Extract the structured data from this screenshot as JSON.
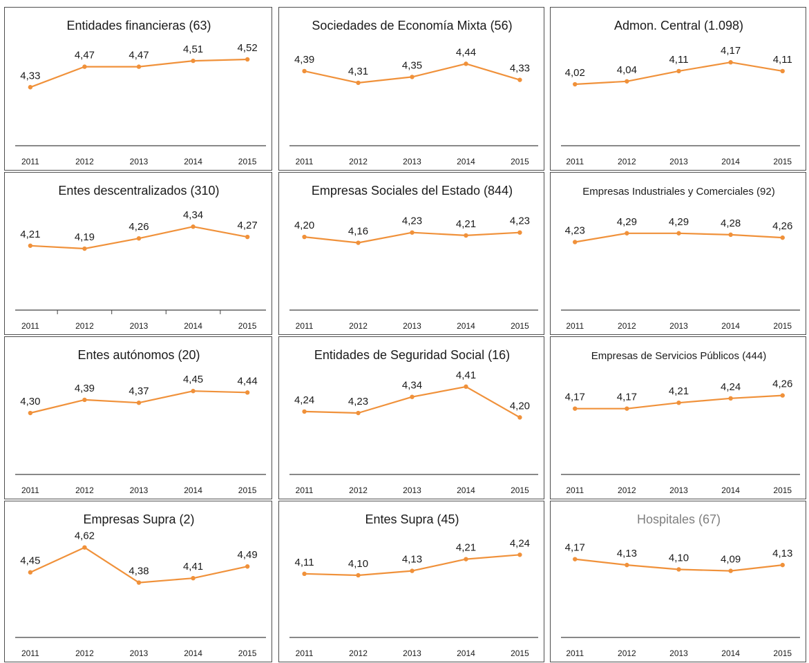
{
  "style": {
    "line_color": "#F0913A",
    "axis_color": "#404040",
    "border_color": "#4d4d4d"
  },
  "chart_data": [
    {
      "type": "line",
      "title": "Entidades financieras (63)",
      "x": [
        "2011",
        "2012",
        "2013",
        "2014",
        "2015"
      ],
      "values": [
        4.33,
        4.47,
        4.47,
        4.51,
        4.52
      ],
      "labels": [
        "4,33",
        "4,47",
        "4,47",
        "4,51",
        "4,52"
      ]
    },
    {
      "type": "line",
      "title": "Sociedades de Economía Mixta (56)",
      "x": [
        "2011",
        "2012",
        "2013",
        "2014",
        "2015"
      ],
      "values": [
        4.39,
        4.31,
        4.35,
        4.44,
        4.33
      ],
      "labels": [
        "4,39",
        "4,31",
        "4,35",
        "4,44",
        "4,33"
      ]
    },
    {
      "type": "line",
      "title": "Admon. Central (1.098)",
      "x": [
        "2011",
        "2012",
        "2013",
        "2014",
        "2015"
      ],
      "values": [
        4.02,
        4.04,
        4.11,
        4.17,
        4.11
      ],
      "labels": [
        "4,02",
        "4,04",
        "4,11",
        "4,17",
        "4,11"
      ]
    },
    {
      "type": "line",
      "title": "Entes descentralizados (310)",
      "x": [
        "2011",
        "2012",
        "2013",
        "2014",
        "2015"
      ],
      "values": [
        4.21,
        4.19,
        4.26,
        4.34,
        4.27
      ],
      "labels": [
        "4,21",
        "4,19",
        "4,26",
        "4,34",
        "4,27"
      ]
    },
    {
      "type": "line",
      "title": "Empresas Sociales del Estado (844)",
      "x": [
        "2011",
        "2012",
        "2013",
        "2014",
        "2015"
      ],
      "values": [
        4.2,
        4.16,
        4.23,
        4.21,
        4.23
      ],
      "labels": [
        "4,20",
        "4,16",
        "4,23",
        "4,21",
        "4,23"
      ]
    },
    {
      "type": "line",
      "title": "Empresas Industriales y Comerciales (92)",
      "x": [
        "2011",
        "2012",
        "2013",
        "2014",
        "2015"
      ],
      "values": [
        4.23,
        4.29,
        4.29,
        4.28,
        4.26
      ],
      "labels": [
        "4,23",
        "4,29",
        "4,29",
        "4,28",
        "4,26"
      ]
    },
    {
      "type": "line",
      "title": "Entes autónomos (20)",
      "x": [
        "2011",
        "2012",
        "2013",
        "2014",
        "2015"
      ],
      "values": [
        4.3,
        4.39,
        4.37,
        4.45,
        4.44
      ],
      "labels": [
        "4,30",
        "4,39",
        "4,37",
        "4,45",
        "4,44"
      ]
    },
    {
      "type": "line",
      "title": "Entidades de Seguridad Social (16)",
      "x": [
        "2011",
        "2012",
        "2013",
        "2014",
        "2015"
      ],
      "values": [
        4.24,
        4.23,
        4.34,
        4.41,
        4.2
      ],
      "labels": [
        "4,24",
        "4,23",
        "4,34",
        "4,41",
        "4,20"
      ]
    },
    {
      "type": "line",
      "title": "Empresas de Servicios Públicos (444)",
      "x": [
        "2011",
        "2012",
        "2013",
        "2014",
        "2015"
      ],
      "values": [
        4.17,
        4.17,
        4.21,
        4.24,
        4.26
      ],
      "labels": [
        "4,17",
        "4,17",
        "4,21",
        "4,24",
        "4,26"
      ]
    },
    {
      "type": "line",
      "title": "Empresas Supra (2)",
      "x": [
        "2011",
        "2012",
        "2013",
        "2014",
        "2015"
      ],
      "values": [
        4.45,
        4.62,
        4.38,
        4.41,
        4.49
      ],
      "labels": [
        "4,45",
        "4,62",
        "4,38",
        "4,41",
        "4,49"
      ]
    },
    {
      "type": "line",
      "title": "Entes Supra (45)",
      "x": [
        "2011",
        "2012",
        "2013",
        "2014",
        "2015"
      ],
      "values": [
        4.11,
        4.1,
        4.13,
        4.21,
        4.24
      ],
      "labels": [
        "4,11",
        "4,10",
        "4,13",
        "4,21",
        "4,24"
      ]
    },
    {
      "type": "line",
      "title": "Hospitales (67)",
      "x": [
        "2011",
        "2012",
        "2013",
        "2014",
        "2015"
      ],
      "values": [
        4.17,
        4.13,
        4.1,
        4.09,
        4.13
      ],
      "labels": [
        "4,17",
        "4,13",
        "4,10",
        "4,09",
        "4,13"
      ]
    }
  ]
}
